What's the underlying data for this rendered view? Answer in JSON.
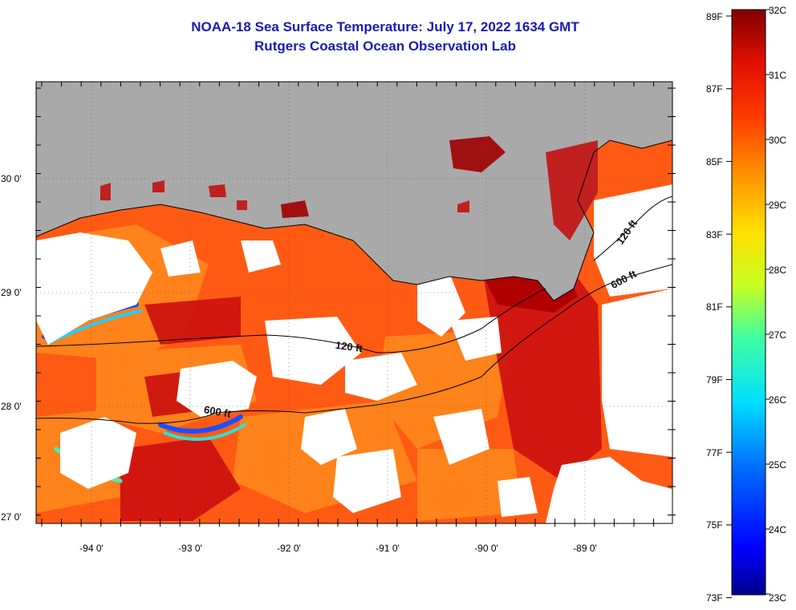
{
  "title": {
    "line1": "NOAA-18 Sea Surface Temperature:  July 17, 2022 1634 GMT",
    "line2": "Rutgers Coastal Ocean Observation Lab"
  },
  "map": {
    "lat_labels": [
      "30 0'",
      "29 0'",
      "28 0'",
      "27 0'"
    ],
    "lon_labels": [
      "-94 0'",
      "-93 0'",
      "-92 0'",
      "-91 0'",
      "-90 0'",
      "-89 0'"
    ],
    "contour_labels": [
      "120 ft",
      "600 ft",
      "120 ft",
      "600 ft"
    ],
    "colors": {
      "land": "#a9a9a9",
      "cloud": "#ffffff",
      "warm_water": "#ff3a10",
      "hot_water": "#c40a0a",
      "cool_water": "#2060ff"
    }
  },
  "colorbar": {
    "fahrenheit_labels": [
      "89F",
      "87F",
      "85F",
      "83F",
      "81F",
      "79F",
      "77F",
      "75F",
      "73F"
    ],
    "celsius_labels": [
      "32C",
      "31C",
      "30C",
      "29C",
      "28C",
      "27C",
      "26C",
      "25C",
      "24C",
      "23C"
    ]
  }
}
